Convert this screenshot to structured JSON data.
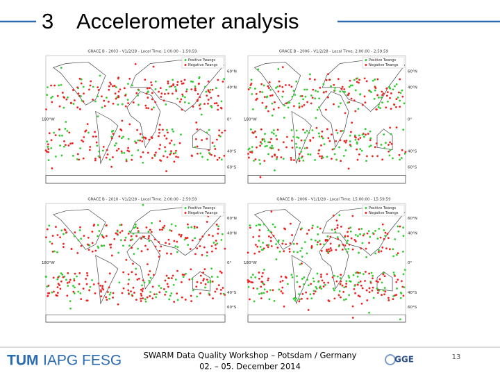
{
  "header": {
    "number": "3",
    "title": "Accelerometer analysis"
  },
  "maps": [
    {
      "title": "GRACE B - 2003 - V1/2/28 - Local Time: 1:00:00 - 1:59:59",
      "legend": [
        "Positive Twangs",
        "Negative Twangs"
      ],
      "lat_labels": [
        "60°N",
        "40°N",
        "0°",
        "40°S",
        "60°S"
      ],
      "lon_label": "180°W"
    },
    {
      "title": "GRACE B - 2006 - V1/2/28 - Local Time: 2:00:00 - 2:59:59",
      "legend": [
        "Positive Twangs",
        "Negative Twangs"
      ],
      "lat_labels": [
        "60°N",
        "40°N",
        "0°",
        "40°S",
        "60°S"
      ],
      "lon_label": "180°W"
    },
    {
      "title": "GRACE B - 2010 - V1/2/28 - Local Time: 2:00:00 - 2:59:59",
      "legend": [
        "Positive Twangs",
        "Negative Twangs"
      ],
      "lat_labels": [
        "60°N",
        "40°N",
        "0°",
        "40°S",
        "60°S"
      ],
      "lon_label": "180°W"
    },
    {
      "title": "GRACE B - 2006 - V1/1/28 - Local Time: 15:00:00 - 15:59:59",
      "legend": [
        "Positive Twangs",
        "Negative Twangs"
      ],
      "lat_labels": [
        "60°N",
        "40°N",
        "0°",
        "40°S",
        "60°S"
      ],
      "lon_label": "180°W"
    }
  ],
  "footer": {
    "logo": "TUM",
    "institutes": "IAPG  FESG",
    "event": "SWARM Data Quality Workshop – Potsdam / Germany",
    "dates": "02. – 05. December 2014",
    "partner_logo": "GGE",
    "page": "13"
  }
}
